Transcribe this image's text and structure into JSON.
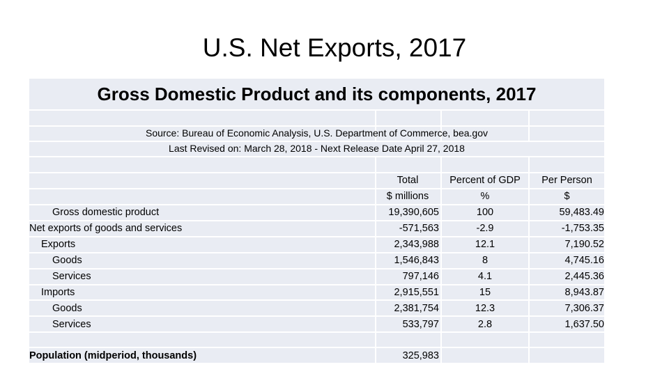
{
  "slide": {
    "title": "U.S. Net Exports, 2017"
  },
  "table": {
    "heading": "Gross Domestic Product and its components, 2017",
    "source_line": "Source: Bureau of Economic Analysis, U.S. Department of Commerce, bea.gov",
    "revision_line": "Last Revised on: March 28, 2018 - Next Release Date April 27, 2018",
    "columns": [
      {
        "header": "Total",
        "unit": "$ millions"
      },
      {
        "header": "Percent of GDP",
        "unit": "%"
      },
      {
        "header": "Per Person",
        "unit": "$"
      }
    ],
    "rows": [
      {
        "label": "Gross domestic product",
        "total": "19,390,605",
        "pct": "100",
        "per_person": "59,483.49"
      },
      {
        "label": "Net exports of goods and services",
        "total": "-571,563",
        "pct": "-2.9",
        "per_person": "-1,753.35"
      },
      {
        "label": "Exports",
        "total": "2,343,988",
        "pct": "12.1",
        "per_person": "7,190.52"
      },
      {
        "label": "Goods",
        "total": "1,546,843",
        "pct": "8",
        "per_person": "4,745.16"
      },
      {
        "label": "Services",
        "total": "797,146",
        "pct": "4.1",
        "per_person": "2,445.36"
      },
      {
        "label": "Imports",
        "total": "2,915,551",
        "pct": "15",
        "per_person": "8,943.87"
      },
      {
        "label": "Goods",
        "total": "2,381,754",
        "pct": "12.3",
        "per_person": "7,306.37"
      },
      {
        "label": "Services",
        "total": "533,797",
        "pct": "2.8",
        "per_person": "1,637.50"
      }
    ],
    "population": {
      "label": "Population (midperiod, thousands)",
      "total": "325,983"
    }
  }
}
